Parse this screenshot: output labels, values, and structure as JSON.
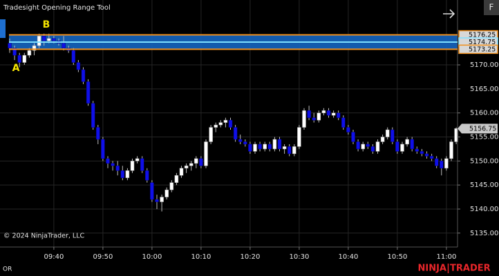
{
  "chart_data": {
    "type": "candlestick",
    "title": "Tradesight Opening Range Tool",
    "menu_button": "F",
    "copyright": "© 2024 NinjaTrader, LLC",
    "footer_label": "OR",
    "brand": [
      "NINJA",
      "TRADER"
    ],
    "up_color": "#ffffff",
    "down_color": "#1010e8",
    "grid": true,
    "categories": [
      null,
      null,
      null,
      null,
      null,
      null,
      null,
      null,
      null,
      "09:40",
      null,
      null,
      null,
      null,
      null,
      null,
      null,
      null,
      null,
      "09:50",
      null,
      null,
      null,
      null,
      null,
      null,
      null,
      null,
      null,
      "10:00",
      null,
      null,
      null,
      null,
      null,
      null,
      null,
      null,
      null,
      "10:10",
      null,
      null,
      null,
      null,
      null,
      null,
      null,
      null,
      null,
      "10:20",
      null,
      null,
      null,
      null,
      null,
      null,
      null,
      null,
      null,
      "10:30",
      null,
      null,
      null,
      null,
      null,
      null,
      null,
      null,
      null,
      "10:40",
      null,
      null,
      null,
      null,
      null,
      null,
      null,
      null,
      null,
      "10:50",
      null,
      null,
      null,
      null,
      null,
      null,
      null,
      null,
      null,
      "11:00",
      null,
      null
    ],
    "open": [
      5174.5,
      5173.5,
      5172,
      5170.5,
      5172,
      5173,
      5174,
      5176,
      5175,
      5175.5,
      5175,
      5174.5,
      5173.5,
      5173,
      5170.5,
      5169,
      5166.5,
      5162,
      5157,
      5154.5,
      5150.5,
      5149.5,
      5149,
      5148,
      5146.5,
      5148,
      5150,
      5150.5,
      5148,
      5145.5,
      5142,
      5141.5,
      5142.5,
      5144,
      5145.5,
      5147,
      5148.5,
      5149,
      5149.5,
      5150.5,
      5149,
      5154,
      5157,
      5157.5,
      5158,
      5158.5,
      5157,
      5154.5,
      5154,
      5153.5,
      5152,
      5153.5,
      5152.5,
      5153.5,
      5152.5,
      5154.5,
      5152.5,
      5153,
      5151.5,
      5153,
      5157,
      5160.5,
      5159,
      5158.5,
      5160,
      5160.5,
      5159.5,
      5160,
      5159,
      5157,
      5156,
      5154,
      5152.5,
      5153.5,
      5153,
      5152,
      5154,
      5155,
      5156.5,
      5154,
      5152,
      5153.5,
      5154.5,
      5152.5,
      5152,
      5151.5,
      5151,
      5150.5,
      5150,
      5148.5,
      5150.5,
      5154
    ],
    "high": [
      5175.5,
      5174,
      5172.5,
      5172.5,
      5173.5,
      5174.5,
      5176.5,
      5176.5,
      5176.5,
      5176,
      5175.5,
      5176,
      5174,
      5173.5,
      5171,
      5169.5,
      5167,
      5162.5,
      5157.5,
      5155,
      5151,
      5150,
      5150,
      5149,
      5148.5,
      5150.5,
      5151,
      5151,
      5148.5,
      5146,
      5143,
      5143,
      5144.5,
      5146,
      5147.5,
      5149,
      5149.5,
      5150,
      5151,
      5151,
      5154.5,
      5157.5,
      5158,
      5158.5,
      5159,
      5159,
      5157.5,
      5155.5,
      5154.5,
      5154,
      5154,
      5154,
      5154,
      5154,
      5155,
      5155,
      5153.5,
      5153.5,
      5153.5,
      5157.5,
      5161,
      5161.5,
      5160,
      5160.5,
      5161,
      5161,
      5160.5,
      5160.5,
      5159.5,
      5157.5,
      5156.5,
      5154.5,
      5154,
      5154,
      5153.5,
      5154.5,
      5155.5,
      5157,
      5157,
      5154.5,
      5154,
      5155,
      5155,
      5153,
      5152.5,
      5152,
      5151.5,
      5151,
      5150.5,
      5151,
      5154.5,
      5157
    ],
    "low": [
      5172.5,
      5171,
      5169.5,
      5170,
      5171.5,
      5172,
      5173.5,
      5174,
      5174.5,
      5174.5,
      5174,
      5173,
      5172.5,
      5170,
      5168.5,
      5166,
      5161.5,
      5156.5,
      5153.5,
      5150,
      5148.5,
      5148,
      5147,
      5146,
      5146,
      5147.5,
      5149.5,
      5147.5,
      5145.5,
      5141.5,
      5140,
      5139.5,
      5142,
      5143.5,
      5145,
      5146.5,
      5147.5,
      5148,
      5148.5,
      5148.5,
      5148.5,
      5153.5,
      5156,
      5157,
      5157,
      5156.5,
      5154,
      5153.5,
      5153,
      5151.5,
      5151.5,
      5152,
      5152,
      5152,
      5152,
      5152,
      5151.5,
      5151,
      5151,
      5152.5,
      5156.5,
      5158.5,
      5158,
      5158,
      5159.5,
      5159,
      5159,
      5158.5,
      5156.5,
      5155.5,
      5153.5,
      5152,
      5152,
      5152.5,
      5151.5,
      5151.5,
      5153.5,
      5154.5,
      5153.5,
      5151.5,
      5151.5,
      5153,
      5152,
      5151.5,
      5151,
      5150.5,
      5150,
      5148.5,
      5147,
      5148,
      5150,
      5153.5
    ],
    "close": [
      5173.5,
      5172,
      5170.5,
      5172,
      5173,
      5174,
      5176,
      5175,
      5175.5,
      5175,
      5174.5,
      5173.5,
      5173,
      5170.5,
      5169,
      5166.5,
      5162,
      5157,
      5154.5,
      5150.5,
      5149.5,
      5149,
      5148,
      5146.5,
      5148,
      5150,
      5150.5,
      5148,
      5146,
      5142,
      5141.5,
      5142.5,
      5144,
      5145.5,
      5147,
      5148.5,
      5149,
      5149.5,
      5150.5,
      5149,
      5154,
      5157,
      5157.5,
      5158,
      5158.5,
      5157,
      5154.5,
      5154,
      5153.5,
      5152,
      5153.5,
      5152.5,
      5153.5,
      5152.5,
      5154.5,
      5152.5,
      5153,
      5151.5,
      5153,
      5157,
      5160.5,
      5159,
      5158.5,
      5160,
      5160.5,
      5159.5,
      5160,
      5159,
      5157,
      5156,
      5154,
      5152.5,
      5153.5,
      5153,
      5152,
      5154,
      5155,
      5156.5,
      5154,
      5152,
      5153.5,
      5154.5,
      5152.5,
      5152,
      5151.5,
      5151,
      5150.5,
      5149,
      5148.5,
      5150.5,
      5154,
      5156.75
    ],
    "levels": [
      {
        "value": 5176.25,
        "color": "#f0901e"
      },
      {
        "value": 5174.75,
        "color": "#7fe0ff"
      },
      {
        "value": 5173.25,
        "color": "#f0901e"
      }
    ],
    "range_fill": "#1565c0",
    "annotations": [
      {
        "text": "A"
      },
      {
        "text": "B"
      }
    ],
    "ylim": [
      5132.1,
      5183.5
    ],
    "yticks": [
      {
        "value": 5135,
        "label": "5135.00"
      },
      {
        "value": 5140,
        "label": "5140.00"
      },
      {
        "value": 5145,
        "label": "5145.00"
      },
      {
        "value": 5150,
        "label": "5150.00"
      },
      {
        "value": 5155,
        "label": "5155.00"
      },
      {
        "value": 5160,
        "label": "5160.00"
      },
      {
        "value": 5165,
        "label": "5165.00"
      },
      {
        "value": 5170,
        "label": "5170.00"
      }
    ]
  }
}
